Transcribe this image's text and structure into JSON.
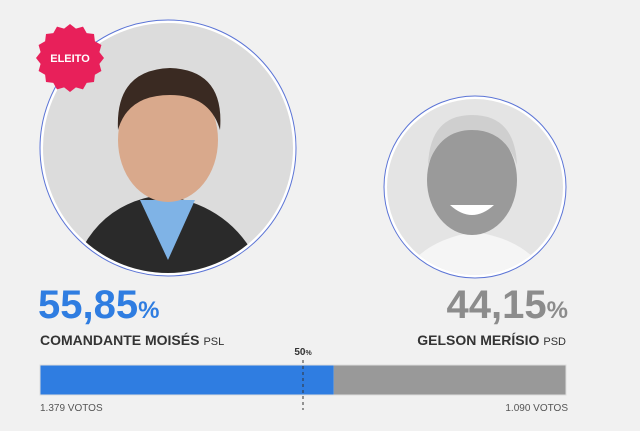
{
  "badge": "ELEITO",
  "candidates": [
    {
      "name": "COMANDANTE MOISÉS",
      "party": "PSL",
      "percent": {
        "value": 55.85,
        "label": "55,85"
      },
      "unit": "%",
      "votes": "1.379 VOTOS",
      "color": "#2f7de1",
      "text_color": "#2f7de1"
    },
    {
      "name": "GELSON MERÍSIO",
      "party": "PSD",
      "percent": {
        "value": 44.15,
        "label": "44,15"
      },
      "unit": "%",
      "votes": "1.090 VOTOS",
      "color": "#999999",
      "text_color": "#8c8c8c"
    }
  ],
  "threshold": {
    "value": 50,
    "label": "50",
    "unit": "%"
  }
}
